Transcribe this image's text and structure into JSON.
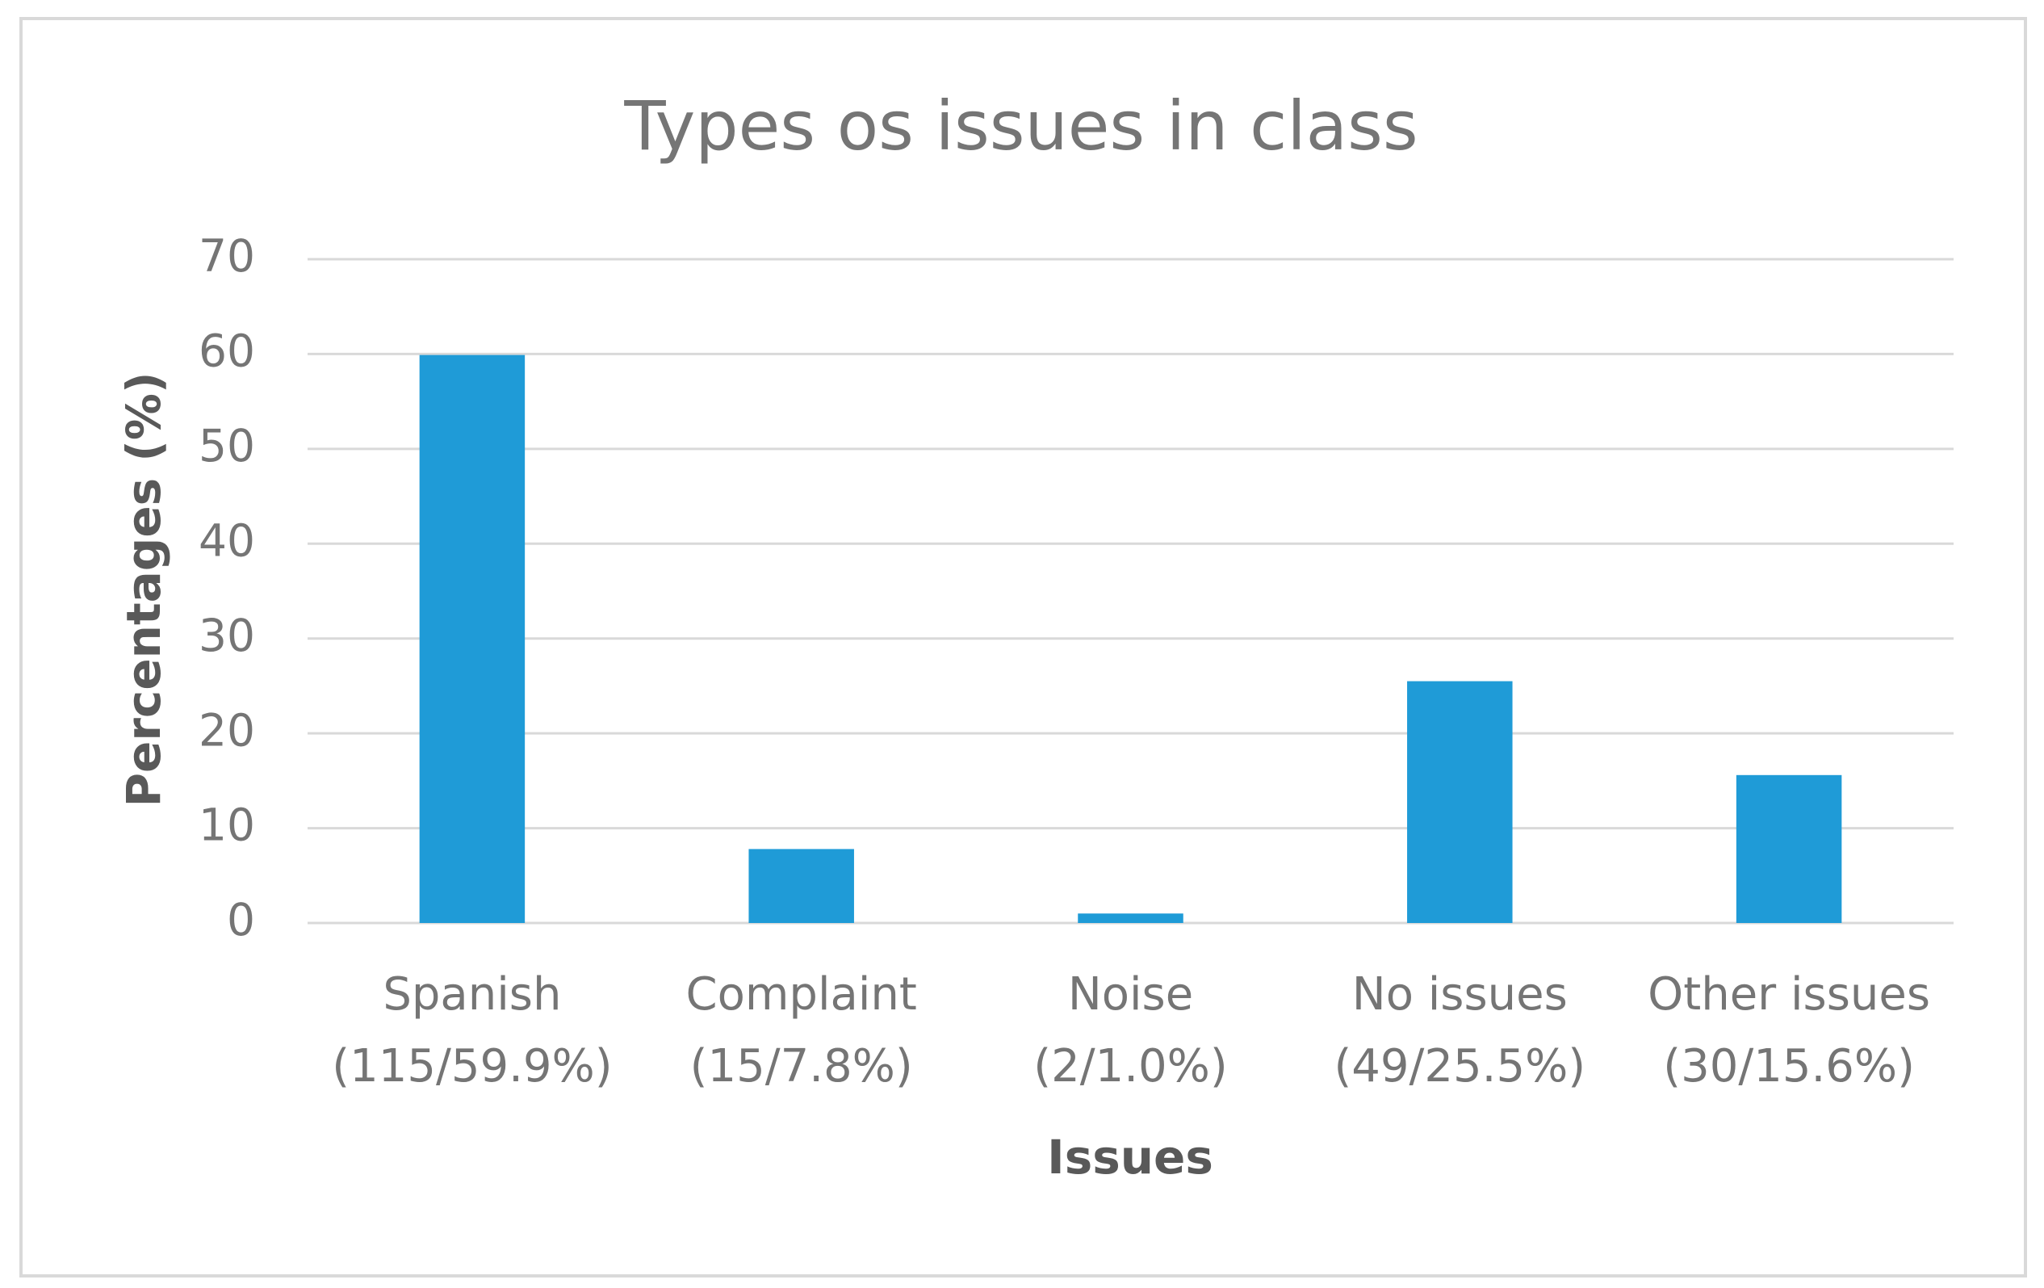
{
  "chart_data": {
    "type": "bar",
    "title": "Types os issues in class",
    "x_label": "Issues",
    "y_label": "Percentages (%)",
    "categories": [
      [
        "Spanish",
        "(115/59.9%)"
      ],
      [
        "Complaint",
        "(15/7.8%)"
      ],
      [
        "Noise",
        "(2/1.0%)"
      ],
      [
        "No issues",
        "(49/25.5%)"
      ],
      [
        "Other issues",
        "(30/15.6%)"
      ]
    ],
    "values": [
      59.9,
      7.8,
      1.0,
      25.5,
      15.6
    ],
    "color": "#1f9bd7",
    "ylim": [
      0,
      70
    ],
    "yticks": [
      0,
      10,
      20,
      30,
      40,
      50,
      60,
      70
    ],
    "grid": true
  }
}
